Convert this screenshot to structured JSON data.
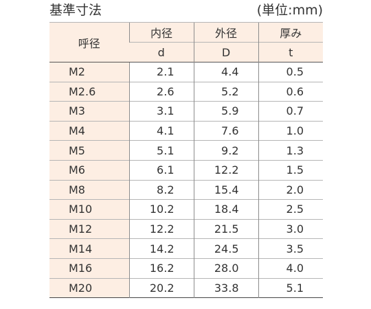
{
  "title": "基準寸法",
  "unit": "(単位:mm)",
  "columns": {
    "nominal": "呼径",
    "inner": {
      "name": "内径",
      "symbol": "d"
    },
    "outer": {
      "name": "外径",
      "symbol": "D"
    },
    "thickness": {
      "name": "厚み",
      "symbol": "t"
    }
  },
  "rows": [
    {
      "size": "M2",
      "d": "2.1",
      "D": "4.4",
      "t": "0.5"
    },
    {
      "size": "M2.6",
      "d": "2.6",
      "D": "5.2",
      "t": "0.6"
    },
    {
      "size": "M3",
      "d": "3.1",
      "D": "5.9",
      "t": "0.7"
    },
    {
      "size": "M4",
      "d": "4.1",
      "D": "7.6",
      "t": "1.0"
    },
    {
      "size": "M5",
      "d": "5.1",
      "D": "9.2",
      "t": "1.3"
    },
    {
      "size": "M6",
      "d": "6.1",
      "D": "12.2",
      "t": "1.5"
    },
    {
      "size": "M8",
      "d": "8.2",
      "D": "15.4",
      "t": "2.0"
    },
    {
      "size": "M10",
      "d": "10.2",
      "D": "18.4",
      "t": "2.5"
    },
    {
      "size": "M12",
      "d": "12.2",
      "D": "21.5",
      "t": "3.0"
    },
    {
      "size": "M14",
      "d": "14.2",
      "D": "24.5",
      "t": "3.5"
    },
    {
      "size": "M16",
      "d": "16.2",
      "D": "28.0",
      "t": "4.0"
    },
    {
      "size": "M20",
      "d": "20.2",
      "D": "33.8",
      "t": "5.1"
    }
  ]
}
